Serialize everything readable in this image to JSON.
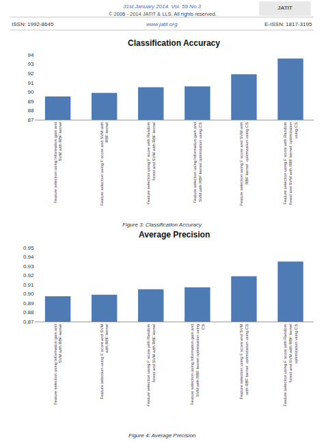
{
  "chart_data": [
    {
      "type": "bar",
      "title": "Classification Accuracy",
      "categories": [
        "Feature selection using Information gain and\nSVM with RBF kernel",
        "Feature selection using F score and SVM with\nRBF kernel",
        "Feature selection using F score with Random\nforest and SVM with RBF kernel",
        "Feature selection using Information gain and\nSVM with RBF kernel optimization using CS",
        "Feature selection using F score and SVM with\nRBF kernel  optimization using CS",
        "Feature selection using F score with Random\nforest and SVM with RBF kernel  optimization\nusing CS"
      ],
      "values": [
        89.5,
        89.9,
        90.5,
        90.6,
        91.9,
        93.6
      ],
      "color": "#4f7bb5",
      "ylim": [
        87,
        94
      ],
      "yticks": [
        87,
        88,
        89,
        90,
        91,
        92,
        93,
        94
      ],
      "grid": false,
      "annotations": [
        "31st January 2014. Vol. 59 No.3",
        "© 2005 - 2014 JATIT & LLS. All rights reserved.",
        "JATIT",
        "ISSN: 1992-8645",
        "www.jatit.org",
        "E-ISSN: 1817-3195",
        "Figure 3: Classification Accuracy"
      ]
    },
    {
      "type": "bar",
      "title": "Average Precision",
      "categories": [
        "Feature selection using Information gain and\nSVM with RBF kernel",
        "Feature selection using F score and SVM\nwith RBF kernel",
        "Feature selection using F score with Random\nforest and SVM with RBF kernel",
        "Feature selection using Information gain and\nSVM with RBF kernel optimization using\nCS",
        "Feature selection using F score and SVM\nwith RBF kernel  optimization using CS",
        "Feature selection using F score with Random\nforest and SVM with RBF kernel\noptimization using CS"
      ],
      "values": [
        0.8975,
        0.899,
        0.905,
        0.907,
        0.919,
        0.935
      ],
      "color": "#4f7bb5",
      "ylim": [
        0.87,
        0.95
      ],
      "yticks": [
        0.87,
        0.88,
        0.89,
        {
          "value": 0.9,
          "label": "0.90"
        },
        0.91,
        0.92,
        0.93,
        0.94,
        0.95
      ],
      "grid": false,
      "annotations": [
        "Figure 4: Average Precision"
      ]
    }
  ]
}
